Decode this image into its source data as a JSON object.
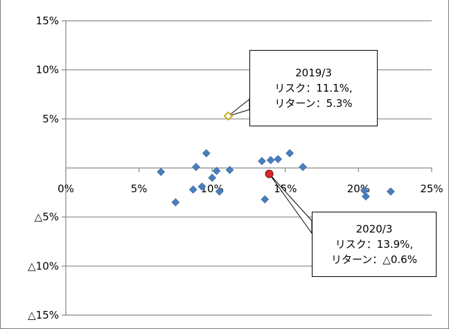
{
  "chart_data": {
    "type": "scatter",
    "title": "",
    "xlabel": "",
    "ylabel": "",
    "xlim": [
      0,
      25
    ],
    "ylim": [
      -15,
      15
    ],
    "x_ticks": [
      0,
      5,
      10,
      15,
      20,
      25
    ],
    "x_tick_labels": [
      "0%",
      "5%",
      "10%",
      "15%",
      "20%",
      "25%"
    ],
    "y_ticks": [
      15,
      10,
      5,
      -5,
      -10,
      -15
    ],
    "y_tick_labels": [
      "15%",
      "10%",
      "5%",
      "△5%",
      "△10%",
      "△15%"
    ],
    "grid": "horizontal",
    "legend": "none",
    "colors": {
      "points": "#4a7ebb",
      "highlight_2019": "#ffffff",
      "highlight_2019_edge": "#c8a400",
      "highlight_2020": "#d9262e",
      "grid": "#868686"
    },
    "series": [
      {
        "values": [
          [
            6.5,
            -0.4
          ],
          [
            7.5,
            -3.5
          ],
          [
            8.7,
            -2.2
          ],
          [
            8.9,
            0.1
          ],
          [
            9.3,
            -1.9
          ],
          [
            9.6,
            1.5
          ],
          [
            10.0,
            -1.0
          ],
          [
            10.3,
            -0.3
          ],
          [
            10.5,
            -2.4
          ],
          [
            11.2,
            -0.2
          ],
          [
            13.4,
            0.7
          ],
          [
            13.6,
            -3.2
          ],
          [
            14.0,
            0.8
          ],
          [
            14.5,
            0.9
          ],
          [
            15.3,
            1.5
          ],
          [
            16.2,
            0.1
          ],
          [
            20.4,
            -2.3
          ],
          [
            20.5,
            -2.9
          ],
          [
            22.2,
            -2.4
          ]
        ]
      }
    ],
    "highlighted_points": [
      {
        "x": 11.1,
        "y": 5.3,
        "label_lines": [
          "2019/3",
          "リスク：11.1%,",
          "リターン：5.3%"
        ]
      },
      {
        "x": 13.9,
        "y": -0.6,
        "label_lines": [
          "2020/3",
          "リスク：13.9%,",
          "リターン：△0.6%"
        ]
      }
    ]
  }
}
